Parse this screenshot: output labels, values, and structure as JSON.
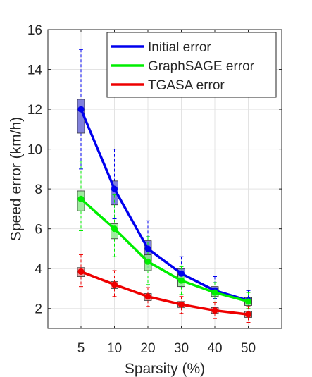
{
  "chart_data": {
    "type": "line",
    "xlabel": "Sparsity (%)",
    "ylabel": "Speed error (km/h)",
    "categories": [
      "5",
      "10",
      "20",
      "30",
      "40",
      "50"
    ],
    "ylim": [
      1,
      16
    ],
    "yticks": [
      "2",
      "4",
      "6",
      "8",
      "10",
      "12",
      "14",
      "16"
    ],
    "grid": true,
    "legend_position": "top-right",
    "series": [
      {
        "name": "Initial error",
        "color": "#0000ee",
        "box_color": "#6b6bd6",
        "values": [
          12.0,
          8.0,
          5.0,
          3.75,
          2.9,
          2.4
        ],
        "box_q1": [
          10.8,
          7.2,
          4.4,
          3.4,
          2.7,
          2.25
        ],
        "box_q3": [
          12.5,
          8.4,
          5.4,
          4.0,
          3.1,
          2.55
        ],
        "whisker_low": [
          9.0,
          6.5,
          3.9,
          3.1,
          2.5,
          2.1
        ],
        "whisker_high": [
          15.0,
          10.0,
          6.4,
          4.6,
          3.6,
          2.9
        ]
      },
      {
        "name": "GraphSAGE error",
        "color": "#00ee00",
        "box_color": "#8fe88f",
        "values": [
          7.5,
          6.0,
          4.35,
          3.4,
          2.8,
          2.35
        ],
        "box_q1": [
          6.9,
          5.5,
          3.9,
          3.1,
          2.6,
          2.15
        ],
        "box_q3": [
          7.9,
          6.25,
          4.7,
          3.7,
          3.0,
          2.55
        ],
        "whisker_low": [
          5.9,
          4.6,
          3.2,
          2.7,
          2.3,
          2.0
        ],
        "whisker_high": [
          9.4,
          7.7,
          5.6,
          4.1,
          3.3,
          2.8
        ]
      },
      {
        "name": "TGASA error",
        "color": "#ee0000",
        "box_color": "#e89090",
        "values": [
          3.85,
          3.2,
          2.6,
          2.2,
          1.9,
          1.7
        ],
        "box_q1": [
          3.6,
          3.0,
          2.4,
          2.05,
          1.75,
          1.55
        ],
        "box_q3": [
          4.05,
          3.35,
          2.75,
          2.35,
          2.05,
          1.85
        ],
        "whisker_low": [
          3.1,
          2.6,
          2.1,
          1.75,
          1.5,
          1.3
        ],
        "whisker_high": [
          4.7,
          3.9,
          3.05,
          2.6,
          2.3,
          2.1
        ]
      }
    ]
  }
}
